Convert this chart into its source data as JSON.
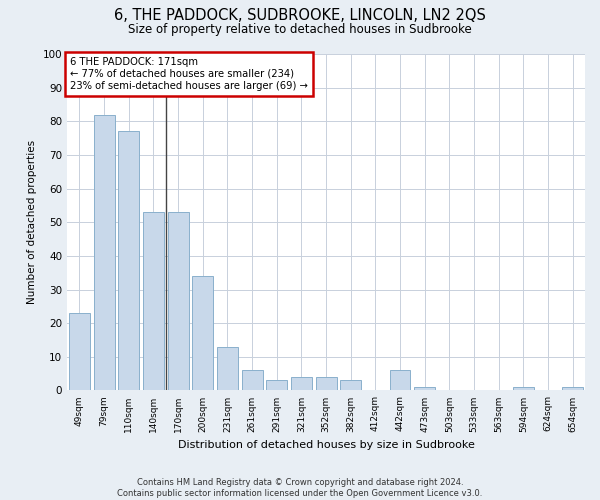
{
  "title": "6, THE PADDOCK, SUDBROOKE, LINCOLN, LN2 2QS",
  "subtitle": "Size of property relative to detached houses in Sudbrooke",
  "xlabel": "Distribution of detached houses by size in Sudbrooke",
  "ylabel": "Number of detached properties",
  "categories": [
    "49sqm",
    "79sqm",
    "110sqm",
    "140sqm",
    "170sqm",
    "200sqm",
    "231sqm",
    "261sqm",
    "291sqm",
    "321sqm",
    "352sqm",
    "382sqm",
    "412sqm",
    "442sqm",
    "473sqm",
    "503sqm",
    "533sqm",
    "563sqm",
    "594sqm",
    "624sqm",
    "654sqm"
  ],
  "values": [
    23,
    82,
    77,
    53,
    53,
    34,
    13,
    6,
    3,
    4,
    4,
    3,
    0,
    6,
    1,
    0,
    0,
    0,
    1,
    0,
    1
  ],
  "bar_color": "#c8d8ea",
  "bar_edge_color": "#8ab0cc",
  "subject_line_index": 4,
  "subject_line_color": "#444444",
  "ylim": [
    0,
    100
  ],
  "yticks": [
    0,
    10,
    20,
    30,
    40,
    50,
    60,
    70,
    80,
    90,
    100
  ],
  "annotation_text": "6 THE PADDOCK: 171sqm\n← 77% of detached houses are smaller (234)\n23% of semi-detached houses are larger (69) →",
  "annotation_box_color": "#ffffff",
  "annotation_border_color": "#cc0000",
  "footer_text": "Contains HM Land Registry data © Crown copyright and database right 2024.\nContains public sector information licensed under the Open Government Licence v3.0.",
  "background_color": "#e8eef4",
  "plot_background_color": "#ffffff",
  "grid_color": "#c8d0dc"
}
